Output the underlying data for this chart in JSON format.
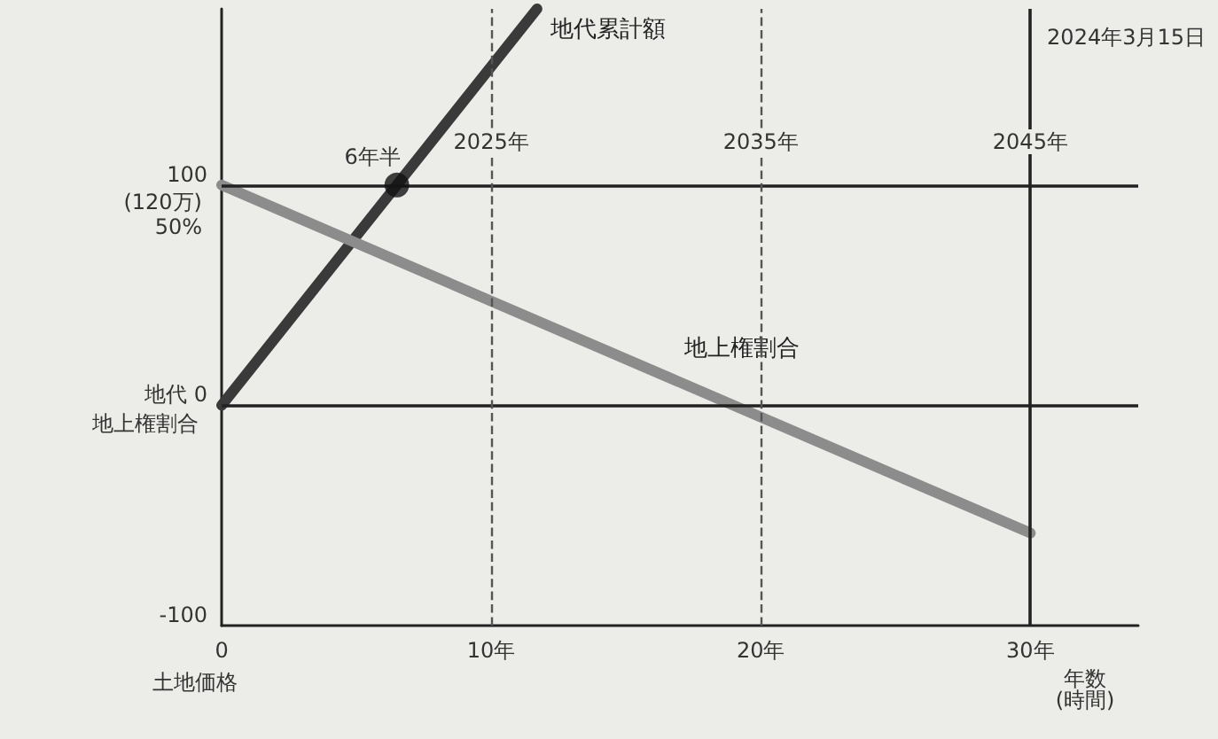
{
  "chart_data": {
    "type": "line",
    "xlabel": "年数\n(時間)",
    "xlim": [
      0,
      34
    ],
    "xticks": [
      0,
      {
        "value": 10,
        "label": "10年"
      },
      {
        "value": 20,
        "label": "20年"
      },
      {
        "value": 30,
        "label": "30年"
      }
    ],
    "x2lim": [
      2015,
      2049
    ],
    "x2ticks": [
      {
        "value": 2025,
        "label": "2025年"
      },
      {
        "value": 2035,
        "label": "2035年"
      },
      {
        "value": 2045,
        "label": "2045年"
      }
    ],
    "ylim": [
      -100,
      180
    ],
    "yticks": [
      -100,
      {
        "value": 0,
        "label": "地代 0"
      },
      100
    ],
    "series": [
      {
        "name": "地代累計額",
        "color": "#3a3a3a",
        "x": [
          0,
          11.7
        ],
        "values": [
          0,
          180
        ]
      },
      {
        "name": "地上権割合",
        "color": "#8c8c8c",
        "x": [
          0,
          30
        ],
        "values": [
          100,
          -58
        ]
      },
      {
        "type": "scatter",
        "color": "#111111",
        "x": [
          6.5
        ],
        "values": [
          100
        ],
        "marker": "circle"
      }
    ],
    "ref_lines": [
      {
        "axis": "y",
        "value": 100,
        "color": "#222222",
        "line_style": "solid"
      },
      {
        "axis": "y",
        "value": 0,
        "color": "#222222",
        "line_style": "solid"
      },
      {
        "axis": "x",
        "value": 10,
        "color": "#555555",
        "line_style": "dashed"
      },
      {
        "axis": "x",
        "value": 20,
        "color": "#555555",
        "line_style": "dashed"
      },
      {
        "axis": "x",
        "value": 30,
        "color": "#222222",
        "line_style": "solid"
      }
    ],
    "annotations": [
      "2024年3月15日",
      "(120万)\n50%",
      "地上権割合",
      "土地価格",
      {
        "text": "6年半",
        "x": 6.5,
        "y": 100
      }
    ],
    "marker": "none",
    "grid": false,
    "legend": false
  }
}
